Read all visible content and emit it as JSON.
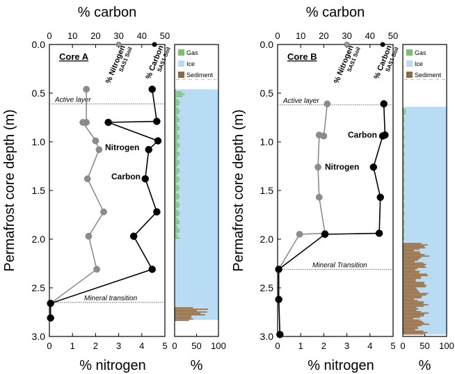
{
  "colors": {
    "carbon": "#000000",
    "nitrogen": "#8c8c8c",
    "gas": "#7ac26a",
    "ice": "#b8dcf4",
    "sediment": "#8c6a45",
    "soil_dash": "#bbbbbb"
  },
  "chart_data": [
    {
      "type": "line",
      "panel": "Core A",
      "title": "% carbon",
      "xlabel": "% nitrogen",
      "ylabel": "Permafrost core depth (m)",
      "top_axis": {
        "label": "% carbon",
        "ticks": [
          "0",
          "10",
          "20",
          "30",
          "40",
          "50"
        ],
        "lim": [
          0,
          50
        ]
      },
      "bottom_axis": {
        "label": "% nitrogen",
        "ticks": [
          "0",
          "1",
          "2",
          "3",
          "4",
          "5"
        ],
        "lim": [
          0,
          5
        ]
      },
      "y_ticks": [
        "0.0",
        "0.5",
        "1.0",
        "1.5",
        "2.0",
        "2.5",
        "3.0"
      ],
      "ylim": [
        3.0,
        0.0
      ],
      "core_label": "Core A",
      "top_markers": {
        "nitrogen_label": "% Nitrogen",
        "carbon_label": "% Carbon",
        "sub_label": "SAS1 Soil",
        "nitrogen_soil": 3.0,
        "carbon_soil": 45.5
      },
      "series": [
        {
          "name": "Nitrogen",
          "axis": "bottom",
          "points": [
            [
              1.6,
              0.46
            ],
            [
              1.6,
              0.8
            ],
            [
              1.45,
              0.8
            ],
            [
              2.0,
              0.99
            ],
            [
              2.15,
              1.08
            ],
            [
              1.65,
              1.38
            ],
            [
              2.35,
              1.72
            ],
            [
              1.7,
              1.97
            ],
            [
              2.05,
              2.31
            ],
            [
              0.05,
              2.66
            ],
            [
              0.05,
              2.81
            ]
          ]
        },
        {
          "name": "Carbon",
          "axis": "top",
          "points": [
            [
              44.5,
              0.46
            ],
            [
              46.5,
              0.79
            ],
            [
              25.5,
              0.8
            ],
            [
              47.0,
              0.99
            ],
            [
              43.0,
              1.08
            ],
            [
              41.5,
              1.38
            ],
            [
              46.5,
              1.72
            ],
            [
              36.5,
              1.97
            ],
            [
              44.5,
              2.31
            ],
            [
              0.5,
              2.66
            ],
            [
              0.5,
              2.81
            ]
          ]
        }
      ],
      "series_labels": [
        {
          "text": "Nitrogen",
          "series": "Nitrogen"
        },
        {
          "text": "Carbon",
          "series": "Carbon"
        }
      ],
      "annotations": [
        {
          "text": "Active layer",
          "depth": 0.61
        },
        {
          "text": "Mineral transition",
          "depth": 2.65
        }
      ],
      "composition": {
        "xlabel": "%",
        "ticks": [
          "0",
          "50",
          "100"
        ],
        "legend": [
          "Gas",
          "Ice",
          "Sediment"
        ],
        "ice_range": [
          0.46,
          2.83
        ],
        "sediment_range": [
          2.7,
          2.83
        ],
        "sediment_pct": 45,
        "gas_range": [
          0.46,
          2.0
        ],
        "gas_pct": 12
      }
    },
    {
      "type": "line",
      "panel": "Core B",
      "title": "% carbon",
      "xlabel": "% nitrogen",
      "ylabel": "Permafrost core depth (m)",
      "top_axis": {
        "label": "% carbon",
        "ticks": [
          "0",
          "10",
          "20",
          "30",
          "40",
          "50"
        ],
        "lim": [
          0,
          50
        ]
      },
      "bottom_axis": {
        "label": "% nitrogen",
        "ticks": [
          "0",
          "1",
          "2",
          "3",
          "4",
          "5"
        ],
        "lim": [
          0,
          5
        ]
      },
      "y_ticks": [
        "0.0",
        "0.5",
        "1.0",
        "1.5",
        "2.0",
        "2.5",
        "3.0"
      ],
      "ylim": [
        3.0,
        0.0
      ],
      "core_label": "Core B",
      "top_markers": {
        "nitrogen_label": "% Nitrogen",
        "carbon_label": "% Carbon",
        "sub_label": "SAS1 Soil",
        "nitrogen_soil": 3.0,
        "carbon_soil": 45.5
      },
      "series": [
        {
          "name": "Nitrogen",
          "axis": "bottom",
          "points": [
            [
              2.15,
              0.61
            ],
            [
              2.0,
              0.94
            ],
            [
              1.8,
              0.93
            ],
            [
              1.75,
              1.26
            ],
            [
              1.8,
              1.57
            ],
            [
              2.05,
              1.94
            ],
            [
              0.95,
              1.95
            ],
            [
              0.05,
              2.31
            ],
            [
              0.05,
              2.62
            ],
            [
              0.1,
              2.98
            ]
          ]
        },
        {
          "name": "Carbon",
          "axis": "top",
          "points": [
            [
              46.0,
              0.61
            ],
            [
              46.5,
              0.93
            ],
            [
              45.5,
              0.94
            ],
            [
              41.5,
              1.26
            ],
            [
              44.5,
              1.57
            ],
            [
              44.0,
              1.94
            ],
            [
              20.5,
              1.95
            ],
            [
              0.5,
              2.31
            ],
            [
              0.5,
              2.62
            ],
            [
              1.0,
              2.98
            ]
          ]
        }
      ],
      "series_labels": [
        {
          "text": "Carbon",
          "series": "Carbon"
        },
        {
          "text": "Nitrogen",
          "series": "Nitrogen"
        }
      ],
      "annotations": [
        {
          "text": "Active layer",
          "depth": 0.62
        },
        {
          "text": "Mineral Transition",
          "depth": 2.31
        }
      ],
      "composition": {
        "xlabel": "%",
        "ticks": [
          "0",
          "50",
          "100"
        ],
        "legend": [
          "Gas",
          "Ice",
          "Sediment"
        ],
        "ice_range": [
          0.64,
          2.98
        ],
        "sediment_range": [
          2.04,
          2.98
        ],
        "sediment_pct": 50,
        "gas_range": [
          0.64,
          2.0
        ],
        "gas_pct": 4
      }
    }
  ]
}
